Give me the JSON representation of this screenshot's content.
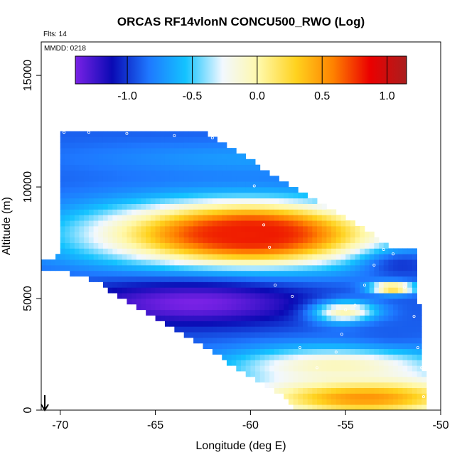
{
  "chart_data": {
    "type": "heatmap",
    "title": "ORCAS RF14vlonN CONCU500_RWO (Log)",
    "annotations": {
      "flights": "Flts: 14",
      "date": "MMDD: 0218"
    },
    "xlabel": "Longitude (deg E)",
    "ylabel": "Altitude (m)",
    "xlim": [
      -71,
      -50
    ],
    "ylim": [
      0,
      16500
    ],
    "xticks": [
      -70,
      -65,
      -60,
      -55,
      -50
    ],
    "xtick_labels": [
      "-70",
      "-65",
      "-60",
      "-55",
      "-50"
    ],
    "yticks": [
      0,
      5000,
      10000,
      15000
    ],
    "ytick_labels": [
      "0",
      "5000",
      "10000",
      "15000"
    ],
    "colorbar": {
      "range": [
        -1.4,
        1.15
      ],
      "ticks": [
        -1.0,
        -0.5,
        0.0,
        0.5,
        1.0
      ],
      "tick_labels": [
        "-1.0",
        "-0.5",
        "0.0",
        "0.5",
        "1.0"
      ],
      "colors": [
        "#7a22e6",
        "#0a0ab4",
        "#1e78ff",
        "#14c3ff",
        "#f2f8ff",
        "#fff8a8",
        "#ffd21e",
        "#ff8200",
        "#eb0000",
        "#aa1e1e"
      ]
    },
    "grid": false,
    "marker_arrow_at": {
      "x": -70.8,
      "y": 0
    },
    "cell_size": {
      "dx": 0.25,
      "dy": 250
    },
    "domain_outline": [
      [
        -71.0,
        6300
      ],
      [
        -71.0,
        6700
      ],
      [
        -70.1,
        6900
      ],
      [
        -70.1,
        10900
      ],
      [
        -69.9,
        12500
      ],
      [
        -62.5,
        12500
      ],
      [
        -52.5,
        7300
      ],
      [
        -51.2,
        7300
      ],
      [
        -51.2,
        4800
      ],
      [
        -51.0,
        4800
      ],
      [
        -50.8,
        0
      ],
      [
        -57.5,
        0
      ],
      [
        -58.2,
        600
      ],
      [
        -68.0,
        5700
      ],
      [
        -70.0,
        6300
      ]
    ],
    "field_features": [
      {
        "name": "upper-band",
        "x": -59.5,
        "y": 11300,
        "sx": 6.5,
        "sy": 500,
        "value": -0.7
      },
      {
        "name": "core-max",
        "x": -59.8,
        "y": 7900,
        "sx": 2.5,
        "sy": 650,
        "value": 1.1
      },
      {
        "name": "core-halo",
        "x": -60.5,
        "y": 7900,
        "sx": 5.5,
        "sy": 1000,
        "value": 0.8
      },
      {
        "name": "lower-plume",
        "x": -63.0,
        "y": 4800,
        "sx": 4.5,
        "sy": 700,
        "value": -1.4
      },
      {
        "name": "surface-layer",
        "x": -54.0,
        "y": 600,
        "sx": 4.5,
        "sy": 700,
        "value": 0.55
      },
      {
        "name": "east-pocket",
        "x": -52.5,
        "y": 5500,
        "sx": 0.8,
        "sy": 180,
        "value": 0.6
      },
      {
        "name": "mid-east-light",
        "x": -55.0,
        "y": 4400,
        "sx": 1.2,
        "sy": 350,
        "value": 0.0
      },
      {
        "name": "boundary-light",
        "x": -55.5,
        "y": 2000,
        "sx": 4.0,
        "sy": 600,
        "value": -0.05
      },
      {
        "name": "east-dark-1",
        "x": -52.0,
        "y": 6500,
        "sx": 1.5,
        "sy": 500,
        "value": -1.0
      },
      {
        "name": "east-dark-2",
        "x": -52.5,
        "y": 3500,
        "sx": 1.5,
        "sy": 400,
        "value": -0.9
      }
    ]
  }
}
